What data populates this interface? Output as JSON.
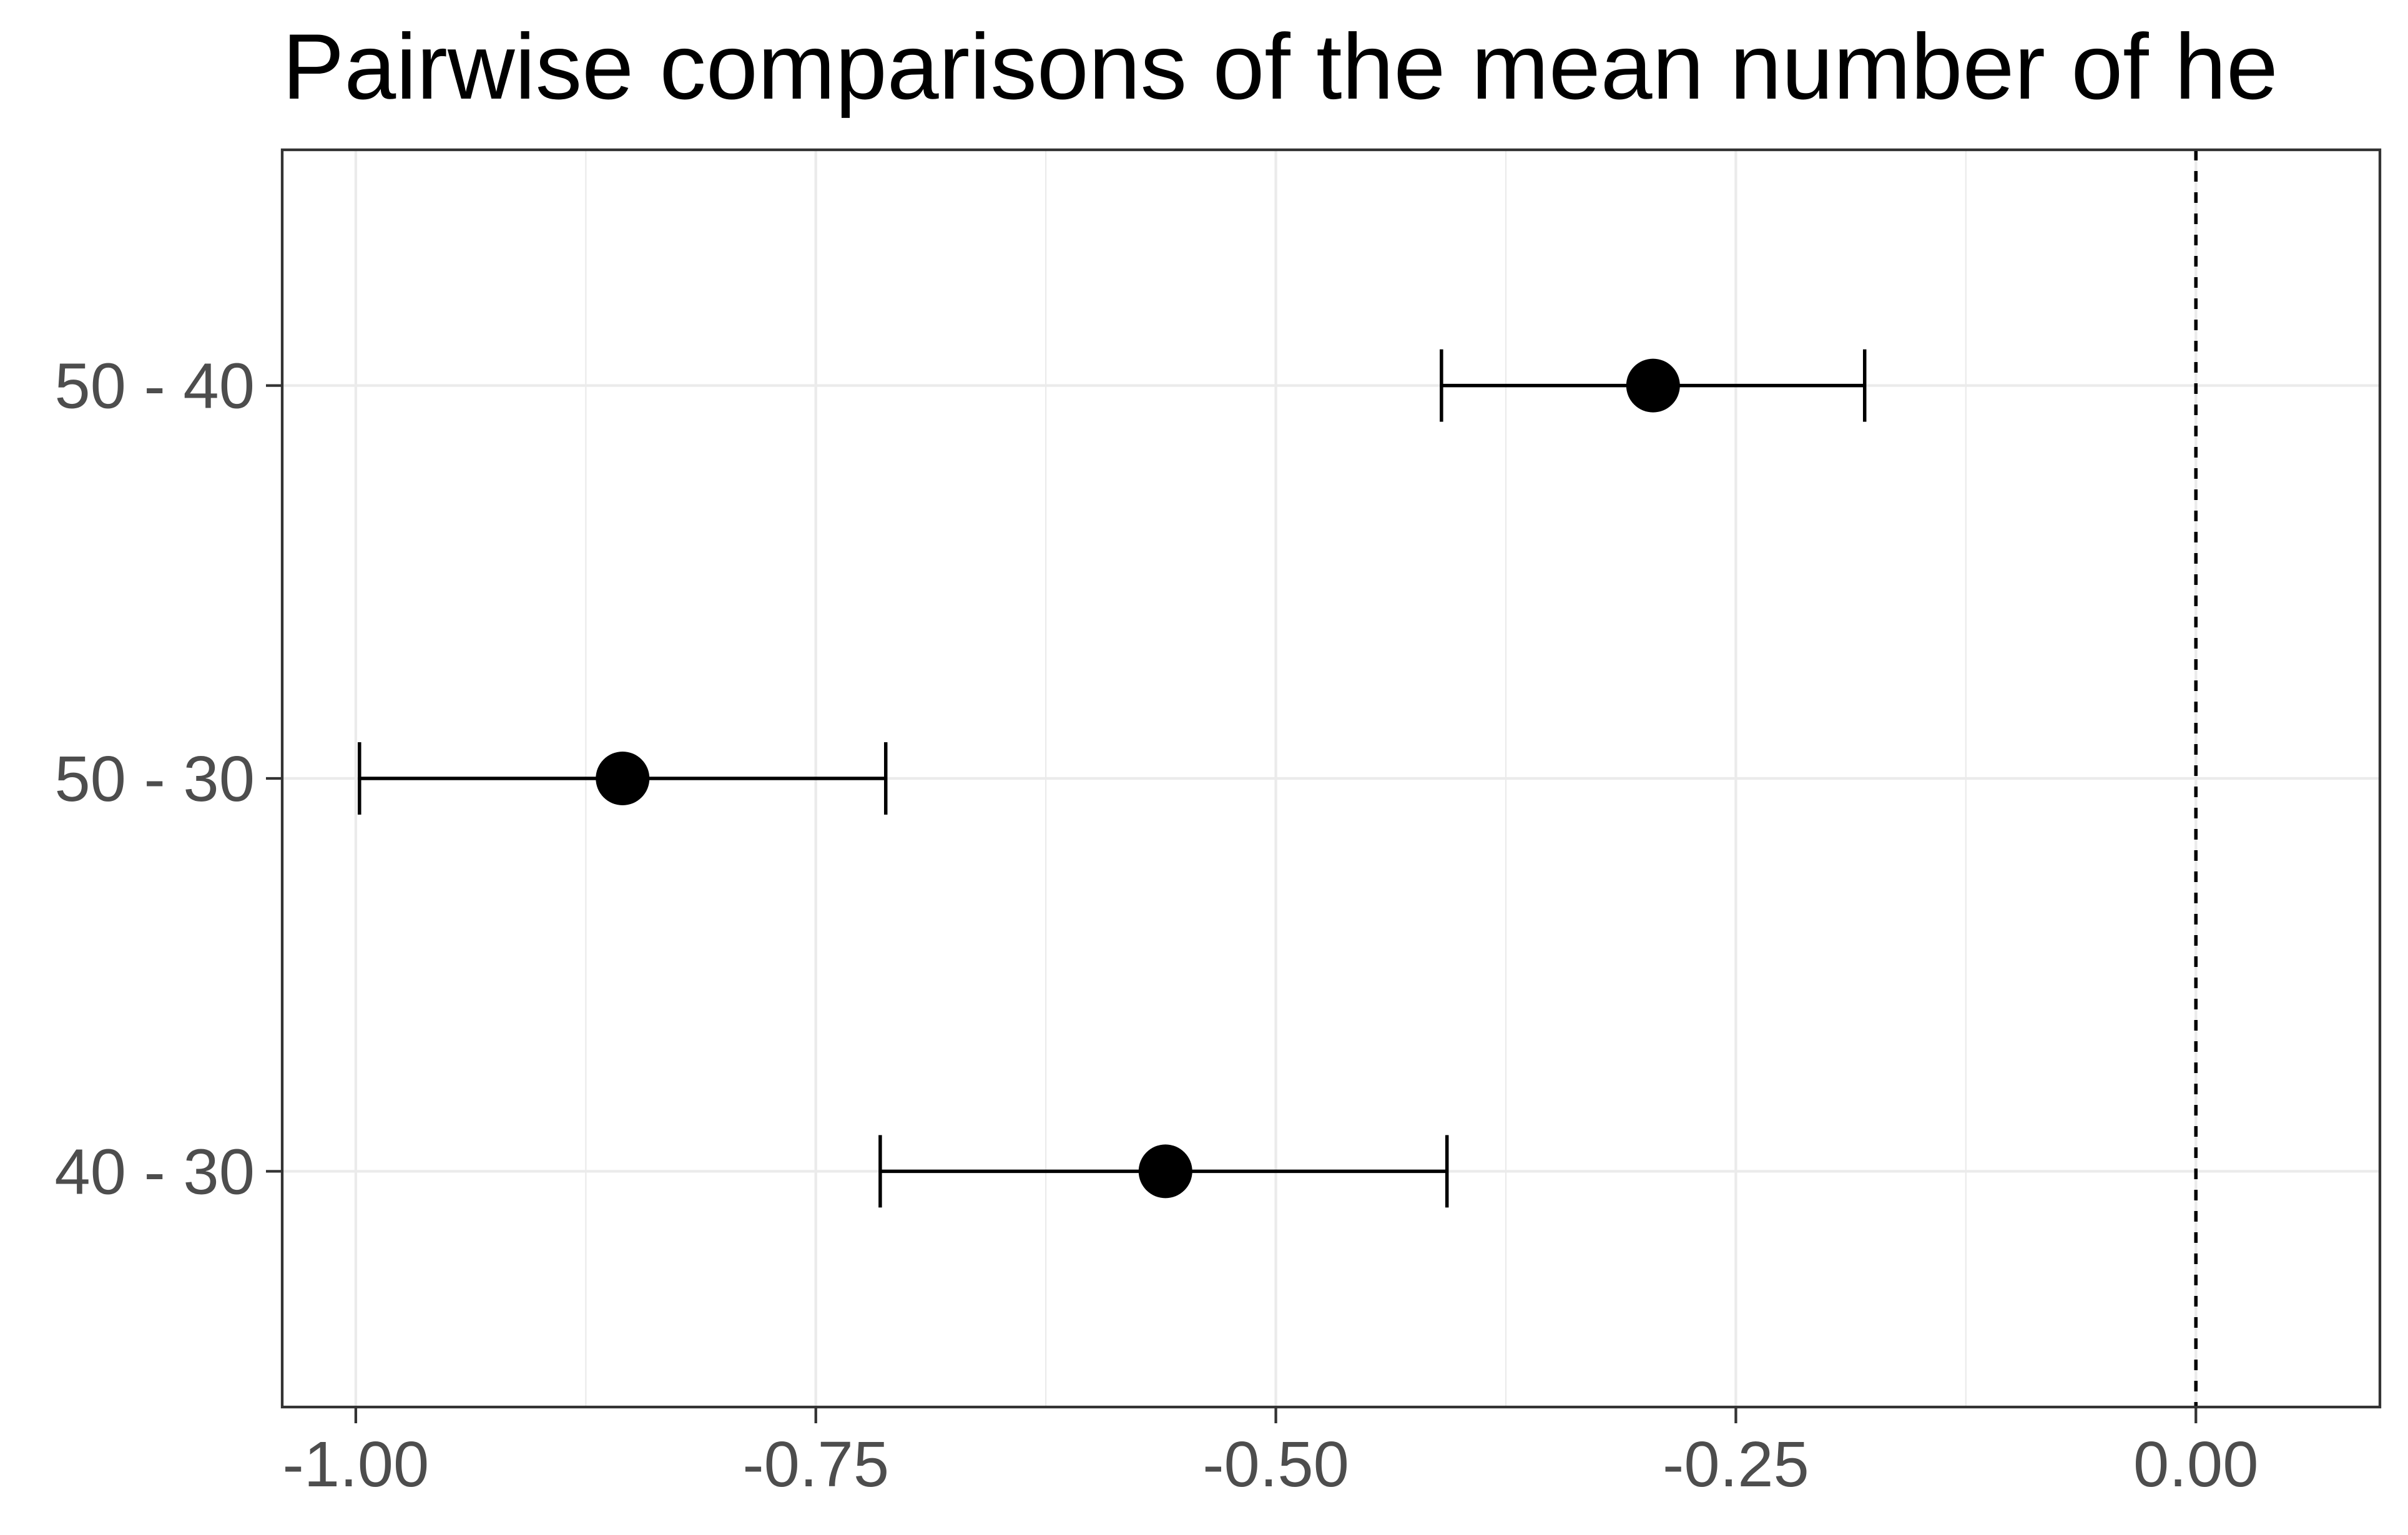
{
  "chart_data": {
    "type": "scatter",
    "title": "Pairwise comparisons of the mean number of he",
    "xlabel": "",
    "ylabel": "",
    "xlim": [
      -1.04,
      0.1
    ],
    "x_ticks": [
      -1.0,
      -0.75,
      -0.5,
      -0.25,
      0.0
    ],
    "x_tick_labels": [
      "-1.00",
      "-0.75",
      "-0.50",
      "-0.25",
      "0.00"
    ],
    "categories": [
      "50 - 40",
      "50 - 30",
      "40 - 30"
    ],
    "series": [
      {
        "estimate": [
          -0.295,
          -0.855,
          -0.56
        ],
        "lower": [
          -0.41,
          -0.998,
          -0.715
        ],
        "upper": [
          -0.18,
          -0.712,
          -0.407
        ]
      }
    ],
    "reference_line": 0.0,
    "grid": true,
    "legend": "none"
  }
}
